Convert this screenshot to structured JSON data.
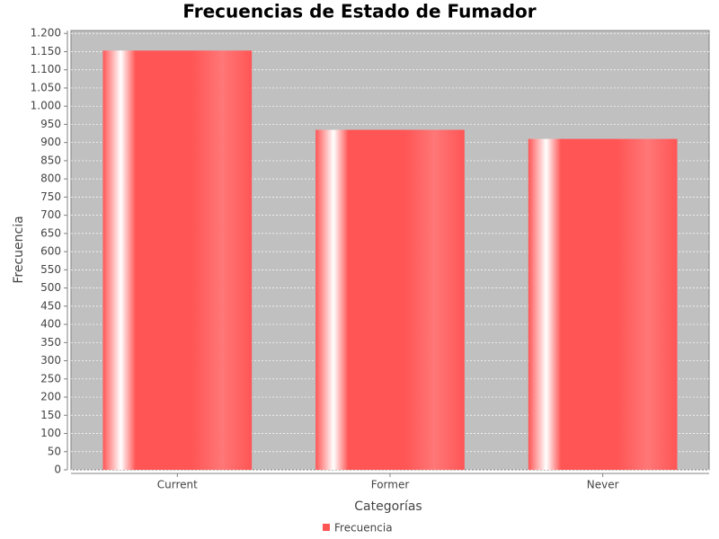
{
  "chart_data": {
    "type": "bar",
    "title": "Frecuencias de Estado de Fumador",
    "x_label": "Categorías",
    "y_label": "Frecuencia",
    "categories": [
      "Current",
      "Former",
      "Never"
    ],
    "series": [
      {
        "name": "Frecuencia",
        "color": "#ff5555",
        "values": [
          1153,
          935,
          910
        ]
      }
    ],
    "ylim": [
      0,
      1208
    ],
    "yticks": [
      0,
      50,
      100,
      150,
      200,
      250,
      300,
      350,
      400,
      450,
      500,
      550,
      600,
      650,
      700,
      750,
      800,
      850,
      900,
      950,
      {
        "value": 1000,
        "label": "1.000"
      },
      {
        "value": 1050,
        "label": "1.050"
      },
      {
        "value": 1100,
        "label": "1.100"
      },
      {
        "value": 1150,
        "label": "1.150"
      },
      {
        "value": 1200,
        "label": "1.200"
      }
    ],
    "grid": true,
    "legend": "bottom"
  }
}
